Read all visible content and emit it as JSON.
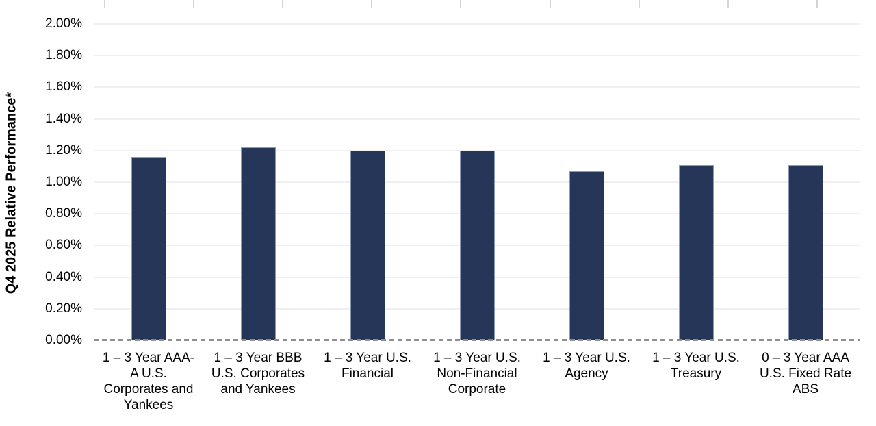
{
  "chart_data": {
    "type": "bar",
    "ylabel": "Q4 2025 Relative Performance*",
    "unit": "%",
    "ylim": [
      0,
      2.0
    ],
    "ytick_step": 0.2,
    "ytick_labels": [
      "2.00%",
      "1.80%",
      "1.60%",
      "1.40%",
      "1.20%",
      "1.00%",
      "0.80%",
      "0.60%",
      "0.40%",
      "0.20%",
      "0.00%"
    ],
    "grid": "horizontal",
    "zero_baseline_style": "dashed",
    "legend": "none",
    "bar_color": "#263659",
    "bar_border_color": "#8e9bb8",
    "categories": [
      {
        "label": "1 – 3 Year AAA-A U.S. Corporates and Yankees",
        "lines": [
          "1 – 3 Year AAA-",
          "A U.S.",
          "Corporates and",
          "Yankees"
        ]
      },
      {
        "label": "1 – 3 Year BBB U.S. Corporates and Yankees",
        "lines": [
          "1 – 3 Year BBB",
          "U.S. Corporates",
          "and Yankees"
        ]
      },
      {
        "label": "1 – 3 Year U.S. Financial",
        "lines": [
          "1 – 3 Year U.S.",
          "Financial"
        ]
      },
      {
        "label": "1 – 3 Year U.S. Non-Financial Corporate",
        "lines": [
          "1 – 3 Year U.S.",
          "Non-Financial",
          "Corporate"
        ]
      },
      {
        "label": "1 – 3 Year U.S. Agency",
        "lines": [
          "1 – 3 Year U.S.",
          "Agency"
        ]
      },
      {
        "label": "1 – 3 Year U.S. Treasury",
        "lines": [
          "1 – 3 Year U.S.",
          "Treasury"
        ]
      },
      {
        "label": "0 – 3 Year AAA U.S. Fixed Rate ABS",
        "lines": [
          "0 – 3 Year AAA",
          "U.S. Fixed Rate",
          "ABS"
        ]
      }
    ],
    "values": [
      1.16,
      1.22,
      1.2,
      1.2,
      1.07,
      1.11,
      1.11
    ]
  }
}
